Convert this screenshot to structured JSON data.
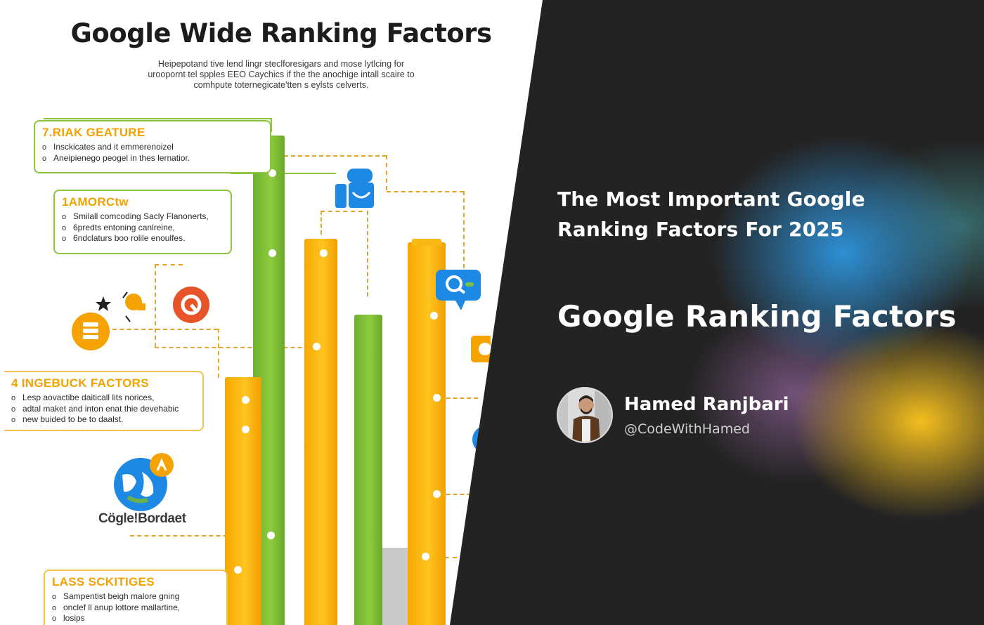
{
  "infographic": {
    "title": "Google Wide Ranking Factors",
    "subtitle_lines": [
      "Heipepotand tive lend lingr steclforesigars and mose lytlcing for",
      "uroopornt tel spples EEO Caychics if the the anochige intall scaire to",
      "comhpute toternegicate'tten s eylsts celverts."
    ],
    "callouts": [
      {
        "title": "7.RIAK GEATURE",
        "items": [
          "Insckicates and it emmerenoizel",
          "Aneipienego peogel in thes lernatior."
        ]
      },
      {
        "title": "1AMORCtw",
        "items": [
          "Smilall comcoding Sacly Flanonerts,",
          "6predts entoning canlreine,",
          "6ndclaturs boo rolile enoulfes."
        ]
      },
      {
        "title": "4 INGEBUCK FACTORS",
        "items": [
          "Lesp aovactibe daiticall lits norices,",
          "adtal maket and inton enat thie devehabic",
          "new buided to be to daalst."
        ]
      },
      {
        "title": "LASS SCKITIGES",
        "items": [
          "Sampentist beigh malore gning",
          "onclef ll anup lottore mallartine,",
          "losips"
        ]
      }
    ],
    "brand_label": "Cögle!Bordaet",
    "icons": [
      "user-icon",
      "search-chat-icon",
      "camera-icon",
      "refresh-icon",
      "database-icon",
      "rocket-icon",
      "globe-icon",
      "running-icon",
      "star-icon"
    ],
    "colors": {
      "green": "#8cc63f",
      "yellow": "#ffc421",
      "orange": "#f2a200"
    }
  },
  "panel": {
    "headline_lines": [
      "The Most Important Google",
      "Ranking Factors For 2025"
    ],
    "big_title": "Google Ranking Factors",
    "author": {
      "name": "Hamed Ranjbari",
      "handle": "@CodeWithHamed"
    },
    "colors": {
      "background": "#232323",
      "blue_glow": "#2e96de",
      "yellow_glow": "#ffc71e"
    }
  }
}
